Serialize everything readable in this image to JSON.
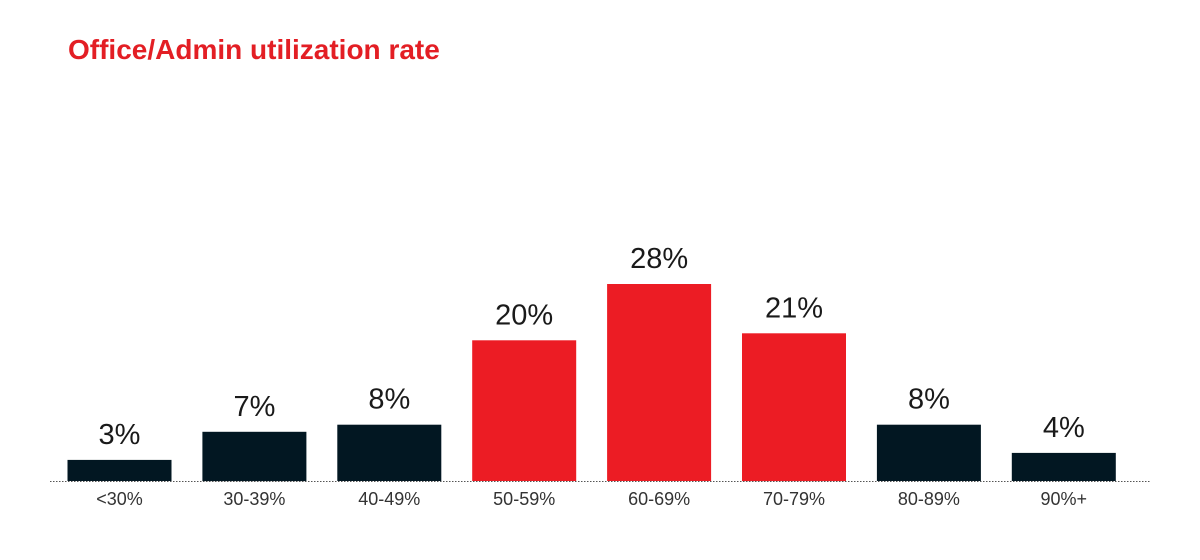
{
  "colors": {
    "title": "#e31e24",
    "highlight_bar": "#ec1c24",
    "default_bar": "#021722",
    "value_text": "#1a1a1a",
    "tick_text": "#333333",
    "baseline": "#555555"
  },
  "chart_data": {
    "type": "bar",
    "title": "Office/Admin utilization rate",
    "xlabel": "",
    "ylabel": "",
    "categories": [
      "<30%",
      "30-39%",
      "40-49%",
      "50-59%",
      "60-69%",
      "70-79%",
      "80-89%",
      "90%+"
    ],
    "values": [
      3,
      7,
      8,
      20,
      28,
      21,
      8,
      4
    ],
    "value_labels": [
      "3%",
      "7%",
      "8%",
      "20%",
      "28%",
      "21%",
      "8%",
      "4%"
    ],
    "highlighted": [
      false,
      false,
      false,
      true,
      true,
      true,
      false,
      false
    ],
    "ylim": [
      0,
      28
    ],
    "grid": false,
    "legend": "none"
  }
}
